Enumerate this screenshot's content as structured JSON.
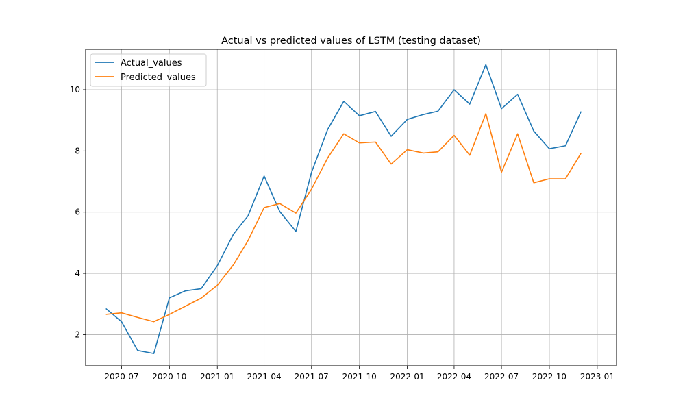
{
  "chart_data": {
    "type": "line",
    "title": "Actual vs predicted values of LSTM (testing dataset)",
    "xlabel": "",
    "ylabel": "",
    "x_axis_type": "date",
    "xlim": [
      "2020-04-23",
      "2023-02-07"
    ],
    "ylim": [
      0.98,
      11.32
    ],
    "x_ticks": [
      "2020-07",
      "2020-10",
      "2021-01",
      "2021-04",
      "2021-07",
      "2021-10",
      "2022-01",
      "2022-04",
      "2022-07",
      "2022-10",
      "2023-01"
    ],
    "y_ticks": [
      2,
      4,
      6,
      8,
      10
    ],
    "grid": true,
    "legend_position": "top-left",
    "x": [
      "2020-06-01",
      "2020-07-01",
      "2020-08-01",
      "2020-09-01",
      "2020-10-01",
      "2020-11-01",
      "2020-12-01",
      "2021-01-01",
      "2021-02-01",
      "2021-03-01",
      "2021-04-01",
      "2021-05-01",
      "2021-06-01",
      "2021-07-01",
      "2021-08-01",
      "2021-09-01",
      "2021-10-01",
      "2021-11-01",
      "2021-12-01",
      "2022-01-01",
      "2022-02-01",
      "2022-03-01",
      "2022-04-01",
      "2022-05-01",
      "2022-06-01",
      "2022-07-01",
      "2022-08-01",
      "2022-09-01",
      "2022-10-01",
      "2022-11-01",
      "2022-12-01"
    ],
    "series": [
      {
        "name": "Actual_values",
        "color": "#1f77b4",
        "values": [
          2.85,
          2.42,
          1.48,
          1.38,
          3.2,
          3.43,
          3.5,
          4.25,
          5.28,
          5.88,
          7.18,
          6.02,
          5.37,
          7.3,
          8.7,
          9.62,
          9.15,
          9.29,
          8.48,
          9.03,
          9.19,
          9.3,
          10.0,
          9.53,
          10.82,
          9.38,
          9.85,
          8.65,
          8.07,
          8.17,
          9.29
        ]
      },
      {
        "name": "Predicted_values",
        "color": "#ff7f0e",
        "values": [
          2.66,
          2.71,
          2.56,
          2.42,
          2.66,
          2.93,
          3.19,
          3.61,
          4.28,
          5.07,
          6.15,
          6.28,
          5.97,
          6.75,
          7.77,
          8.56,
          8.26,
          8.29,
          7.57,
          8.04,
          7.93,
          7.97,
          8.51,
          7.86,
          9.22,
          7.3,
          8.56,
          6.96,
          7.09,
          7.09,
          7.93
        ]
      }
    ]
  }
}
